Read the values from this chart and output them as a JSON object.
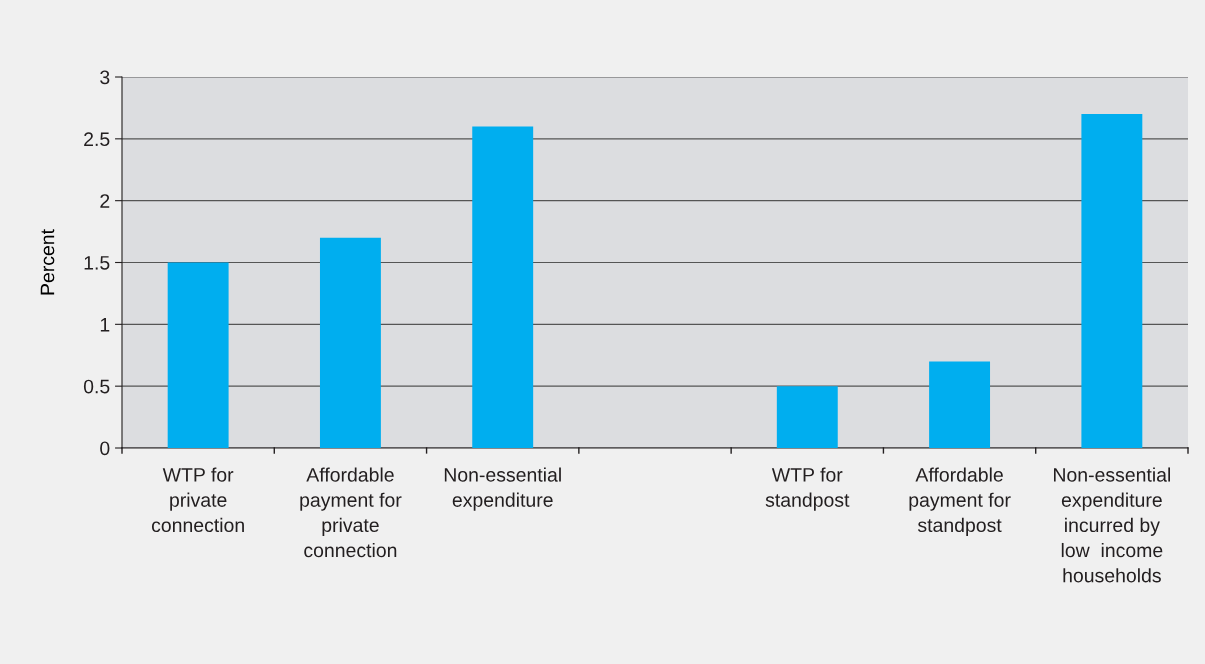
{
  "chart_data": {
    "type": "bar",
    "ylabel": "Percent",
    "categories": [
      "WTP for\nprivate\nconnection",
      "Affordable\npayment for\nprivate\nconnection",
      "Non-essential\nexpenditure",
      null,
      "WTP for\nstandpost",
      "Affordable\npayment for\nstandpost",
      "Non-essential\nexpenditure\nincurred by\nlow  income\nhouseholds"
    ],
    "values": [
      1.5,
      1.7,
      2.6,
      null,
      0.5,
      0.7,
      2.7
    ],
    "color": "#00aeef",
    "ylim": [
      0,
      3
    ],
    "yticks": [
      0,
      0.5,
      1,
      1.5,
      2,
      2.5,
      3
    ],
    "grid": "y",
    "legend": false
  }
}
